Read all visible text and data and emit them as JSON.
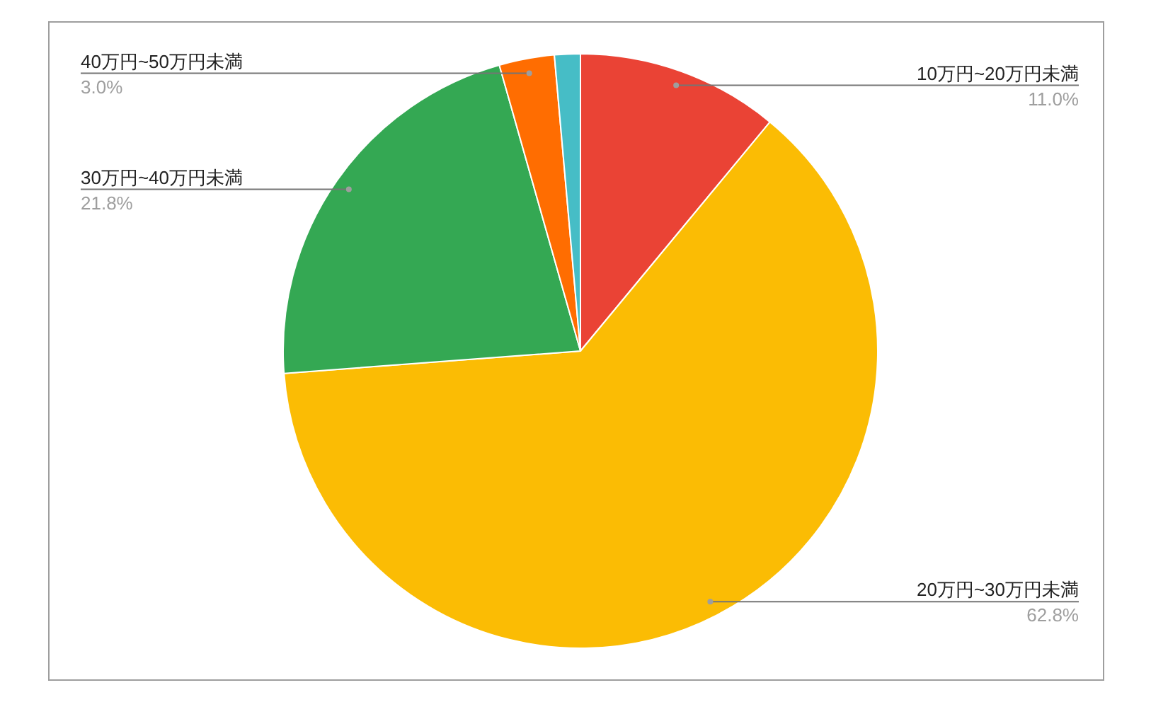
{
  "chart_data": {
    "type": "pie",
    "categories": [
      "10万円~20万円未満",
      "20万円~30万円未満",
      "30万円~40万円未満",
      "40万円~50万円未満",
      null
    ],
    "values": [
      11.0,
      62.8,
      21.8,
      3.0,
      1.4
    ],
    "colors": [
      "#ea4335",
      "#fbbc04",
      "#34a853",
      "#ff6d01",
      "#46bdc6"
    ],
    "value_labels": [
      "11.0%",
      "62.8%",
      "21.8%",
      "3.0%",
      null
    ]
  }
}
